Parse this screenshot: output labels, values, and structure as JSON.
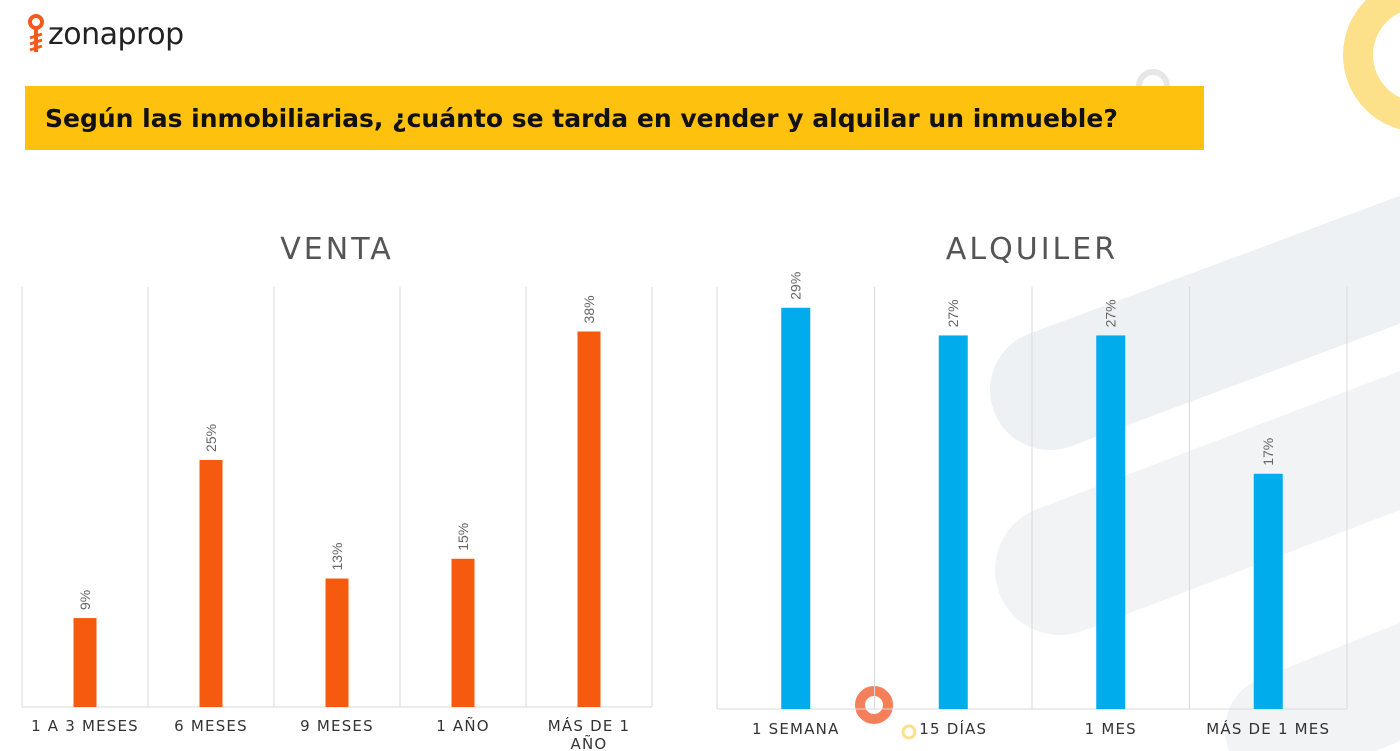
{
  "brand": {
    "name": "zonaprop",
    "accent": "#f55a1c",
    "banner_color": "#fec10d"
  },
  "banner": {
    "title": "Según las inmobiliarias, ¿cuánto se tarda en vender y alquilar un inmueble?"
  },
  "chart_data": [
    {
      "type": "bar",
      "title": "VENTA",
      "categories": [
        "1 A 3 MESES",
        "6 MESES",
        "9 MESES",
        "1 AÑO",
        "MÁS DE 1 AÑO"
      ],
      "values": [
        9,
        25,
        13,
        15,
        38
      ],
      "value_labels": [
        "9%",
        "25%",
        "13%",
        "15%",
        "38%"
      ],
      "color": "#f55a0f",
      "xlabel": "",
      "ylabel": "",
      "ylim": [
        0,
        42.5
      ]
    },
    {
      "type": "bar",
      "title": "ALQUILER",
      "categories": [
        "1 SEMANA",
        "15 DÍAS",
        "1 MES",
        "MÁS DE 1 MES"
      ],
      "values": [
        29,
        27,
        27,
        17
      ],
      "value_labels": [
        "29%",
        "27%",
        "27%",
        "17%"
      ],
      "color": "#00acec",
      "xlabel": "",
      "ylabel": "",
      "ylim": [
        0,
        30.5
      ]
    }
  ]
}
